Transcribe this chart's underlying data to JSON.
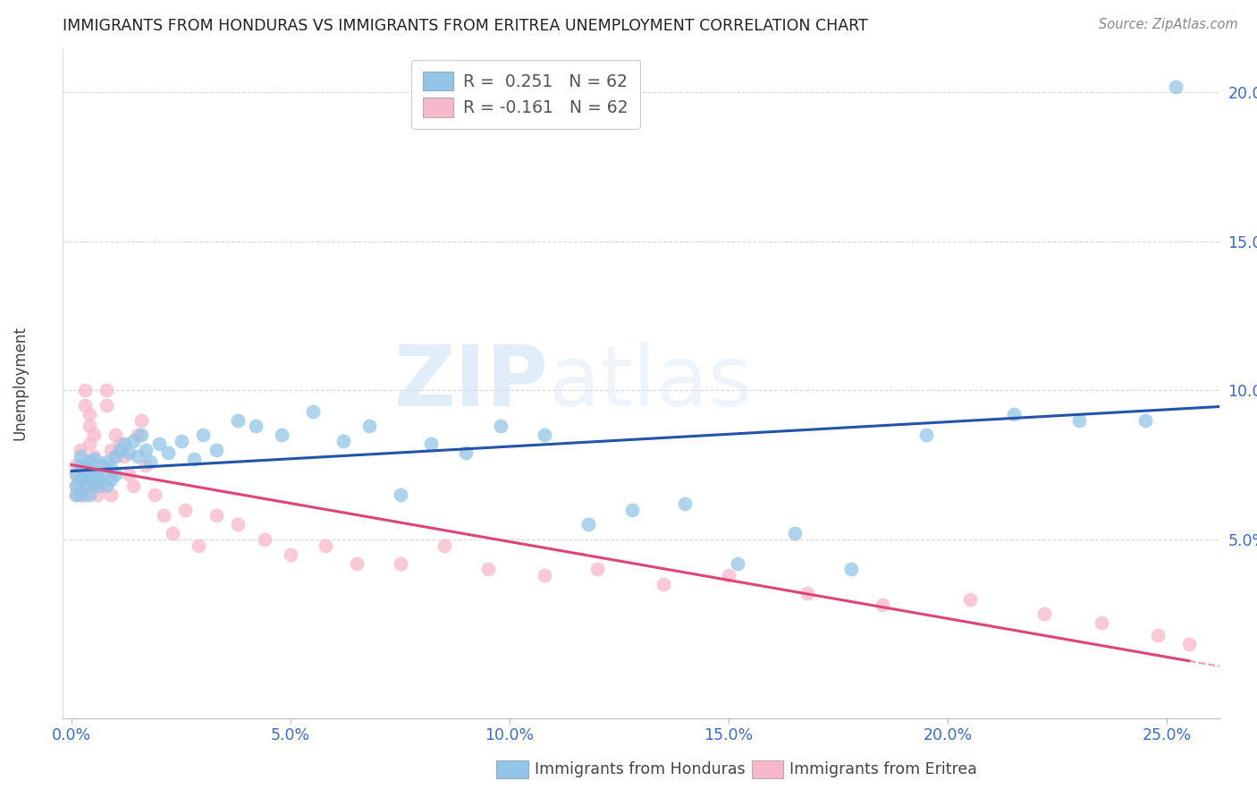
{
  "title": "IMMIGRANTS FROM HONDURAS VS IMMIGRANTS FROM ERITREA UNEMPLOYMENT CORRELATION CHART",
  "source": "Source: ZipAtlas.com",
  "xlabel_ticks": [
    "0.0%",
    "5.0%",
    "10.0%",
    "15.0%",
    "20.0%",
    "25.0%"
  ],
  "xlabel_vals": [
    0.0,
    0.05,
    0.1,
    0.15,
    0.2,
    0.25
  ],
  "ylabel_ticks": [
    "5.0%",
    "10.0%",
    "15.0%",
    "20.0%"
  ],
  "ylabel_vals": [
    0.05,
    0.1,
    0.15,
    0.2
  ],
  "ylabel_label": "Unemployment",
  "xlim": [
    -0.002,
    0.262
  ],
  "ylim": [
    -0.01,
    0.215
  ],
  "watermark_zip": "ZIP",
  "watermark_atlas": "atlas",
  "legend1_label": "R =  0.251   N = 62",
  "legend2_label": "R = -0.161   N = 62",
  "legend1_color": "#92c5e8",
  "legend2_color": "#f7b8cb",
  "trendline1_color": "#2255aa",
  "trendline2_color": "#dd4477",
  "scatter1_color": "#92c5e8",
  "scatter2_color": "#f7b8cb",
  "grid_color": "#d0d0d0",
  "honduras_x": [
    0.001,
    0.001,
    0.001,
    0.002,
    0.002,
    0.002,
    0.002,
    0.003,
    0.003,
    0.003,
    0.004,
    0.004,
    0.004,
    0.005,
    0.005,
    0.005,
    0.006,
    0.006,
    0.007,
    0.007,
    0.008,
    0.008,
    0.009,
    0.009,
    0.01,
    0.01,
    0.011,
    0.012,
    0.013,
    0.014,
    0.015,
    0.016,
    0.017,
    0.018,
    0.02,
    0.022,
    0.025,
    0.028,
    0.03,
    0.033,
    0.038,
    0.042,
    0.048,
    0.055,
    0.062,
    0.068,
    0.075,
    0.082,
    0.09,
    0.098,
    0.108,
    0.118,
    0.128,
    0.14,
    0.152,
    0.165,
    0.178,
    0.195,
    0.215,
    0.23,
    0.245,
    0.252
  ],
  "honduras_y": [
    0.065,
    0.072,
    0.068,
    0.07,
    0.075,
    0.065,
    0.078,
    0.072,
    0.068,
    0.074,
    0.07,
    0.076,
    0.065,
    0.073,
    0.069,
    0.077,
    0.071,
    0.068,
    0.075,
    0.072,
    0.076,
    0.068,
    0.074,
    0.07,
    0.078,
    0.072,
    0.08,
    0.082,
    0.079,
    0.083,
    0.078,
    0.085,
    0.08,
    0.076,
    0.082,
    0.079,
    0.083,
    0.077,
    0.085,
    0.08,
    0.09,
    0.088,
    0.085,
    0.093,
    0.083,
    0.088,
    0.065,
    0.082,
    0.079,
    0.088,
    0.085,
    0.055,
    0.06,
    0.062,
    0.042,
    0.052,
    0.04,
    0.085,
    0.092,
    0.09,
    0.09,
    0.202
  ],
  "eritrea_x": [
    0.001,
    0.001,
    0.001,
    0.001,
    0.002,
    0.002,
    0.002,
    0.002,
    0.003,
    0.003,
    0.003,
    0.003,
    0.004,
    0.004,
    0.004,
    0.004,
    0.005,
    0.005,
    0.005,
    0.006,
    0.006,
    0.006,
    0.007,
    0.007,
    0.008,
    0.008,
    0.009,
    0.009,
    0.01,
    0.01,
    0.011,
    0.012,
    0.013,
    0.014,
    0.015,
    0.016,
    0.017,
    0.019,
    0.021,
    0.023,
    0.026,
    0.029,
    0.033,
    0.038,
    0.044,
    0.05,
    0.058,
    0.065,
    0.075,
    0.085,
    0.095,
    0.108,
    0.12,
    0.135,
    0.15,
    0.168,
    0.185,
    0.205,
    0.222,
    0.235,
    0.248,
    0.255
  ],
  "eritrea_y": [
    0.068,
    0.072,
    0.065,
    0.075,
    0.07,
    0.065,
    0.08,
    0.068,
    0.095,
    0.1,
    0.072,
    0.065,
    0.088,
    0.082,
    0.075,
    0.092,
    0.068,
    0.085,
    0.078,
    0.072,
    0.068,
    0.065,
    0.075,
    0.068,
    0.095,
    0.1,
    0.065,
    0.08,
    0.085,
    0.078,
    0.082,
    0.078,
    0.072,
    0.068,
    0.085,
    0.09,
    0.075,
    0.065,
    0.058,
    0.052,
    0.06,
    0.048,
    0.058,
    0.055,
    0.05,
    0.045,
    0.048,
    0.042,
    0.042,
    0.048,
    0.04,
    0.038,
    0.04,
    0.035,
    0.038,
    0.032,
    0.028,
    0.03,
    0.025,
    0.022,
    0.018,
    0.015
  ]
}
